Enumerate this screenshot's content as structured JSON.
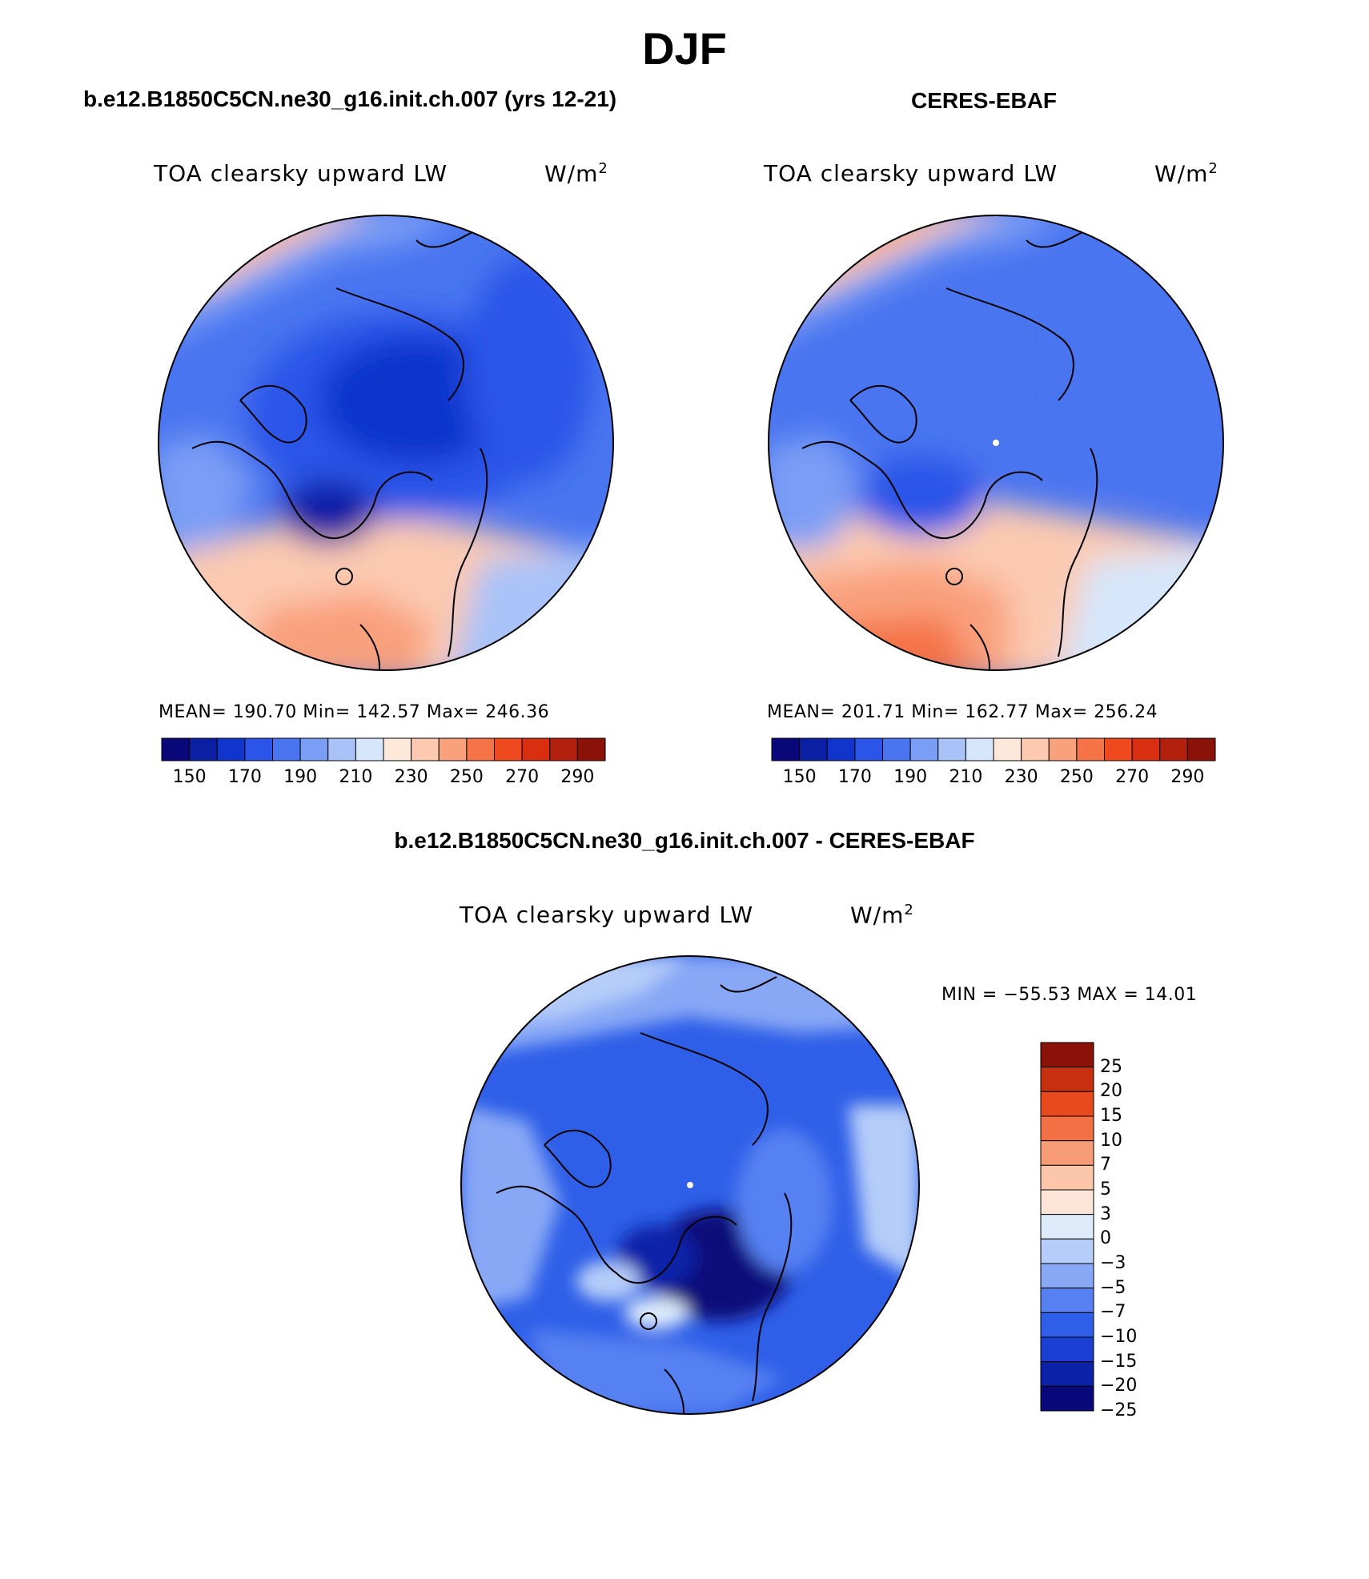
{
  "title": "DJF",
  "colors": {
    "abs_scale": [
      "#08087a",
      "#0b1fa5",
      "#1135cc",
      "#2a55e8",
      "#4a75f0",
      "#7a9ef5",
      "#a9c3f8",
      "#d6e6fb",
      "#fde8da",
      "#fcc9b0",
      "#f9a07d",
      "#f57346",
      "#ef4a1f",
      "#d92f10",
      "#b3210e",
      "#8a1209"
    ],
    "diff_scale": [
      "#08087a",
      "#0b22a8",
      "#1b3fd3",
      "#2f5fe8",
      "#5781f2",
      "#88a8f6",
      "#b6cdf9",
      "#ddebfb",
      "#fde6d8",
      "#fbc6aa",
      "#f79c76",
      "#f27043",
      "#e64a1d",
      "#c7300f",
      "#8a1209"
    ]
  },
  "panels": [
    {
      "title": "b.e12.B1850C5CN.ne30_g16.init.ch.007 (yrs 12-21)",
      "variable": "TOA clearsky upward LW",
      "units_base": "W/m",
      "units_exp": "2",
      "stats": "MEAN= 190.70   Min= 142.57   Max= 246.36",
      "colorbar_ticks": [
        "150",
        "170",
        "190",
        "210",
        "230",
        "250",
        "270",
        "290"
      ]
    },
    {
      "title": "CERES-EBAF",
      "variable": "TOA clearsky upward LW",
      "units_base": "W/m",
      "units_exp": "2",
      "stats": "MEAN= 201.71   Min= 162.77   Max= 256.24",
      "colorbar_ticks": [
        "150",
        "170",
        "190",
        "210",
        "230",
        "250",
        "270",
        "290"
      ]
    },
    {
      "title": "b.e12.B1850C5CN.ne30_g16.init.ch.007 - CERES-EBAF",
      "variable": "TOA clearsky upward LW",
      "units_base": "W/m",
      "units_exp": "2",
      "stats": "MIN = −55.53 MAX =  14.01",
      "colorbar_ticks": [
        "25",
        "20",
        "15",
        "10",
        "7",
        "5",
        "3",
        "0",
        "−3",
        "−5",
        "−7",
        "−10",
        "−15",
        "−20",
        "−25"
      ]
    }
  ]
}
